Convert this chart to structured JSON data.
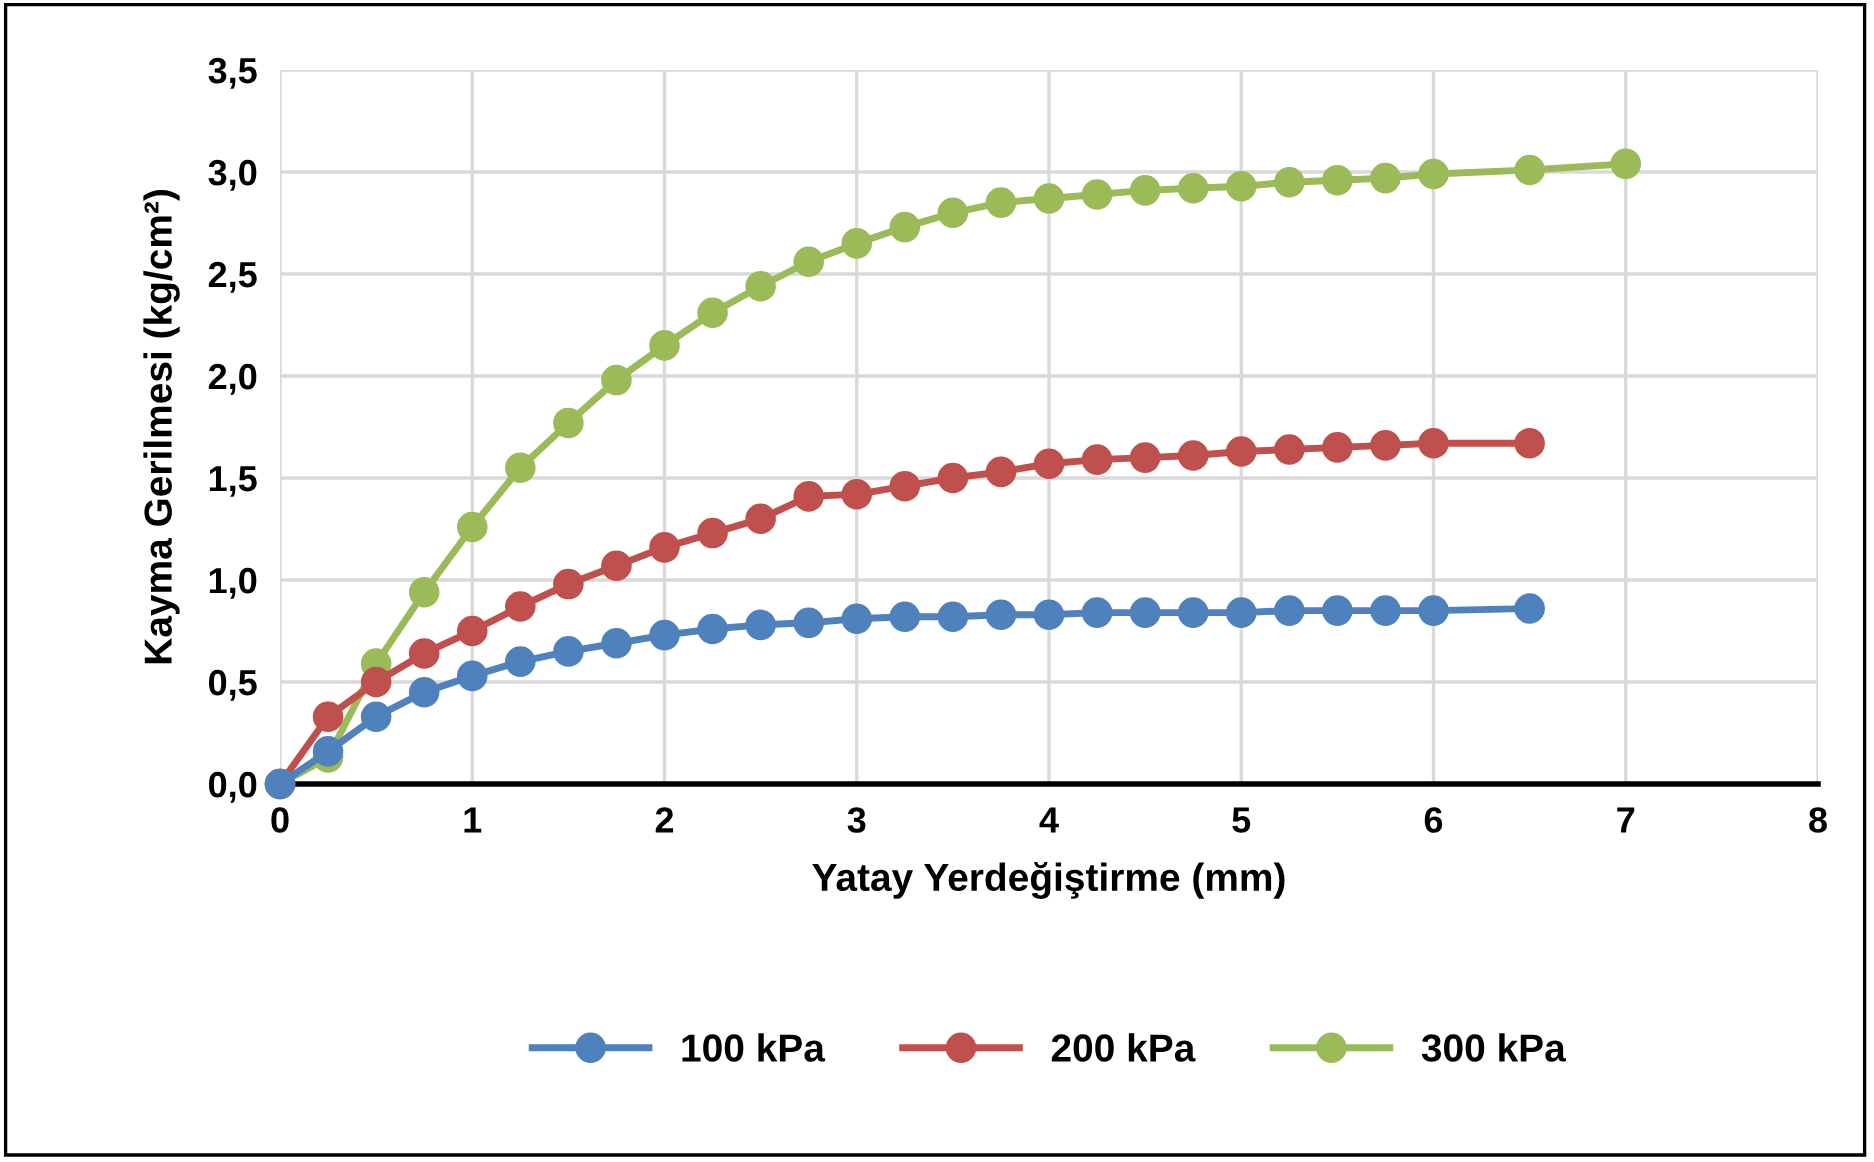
{
  "chart_data": {
    "type": "line",
    "xlabel": "Yatay Yerdeğiştirme (mm)",
    "ylabel": "Kayma Gerilmesi (kg/cm²)",
    "xlim": [
      0,
      8
    ],
    "xticks": [
      0,
      1,
      2,
      3,
      4,
      5,
      6,
      7,
      8
    ],
    "ylim": [
      0,
      3.5
    ],
    "yticks": [
      {
        "value": 0,
        "label": "0,0"
      },
      {
        "value": 0.5,
        "label": "0,5"
      },
      {
        "value": 1,
        "label": "1,0"
      },
      {
        "value": 1.5,
        "label": "1,5"
      },
      {
        "value": 2,
        "label": "2,0"
      },
      {
        "value": 2.5,
        "label": "2,5"
      },
      {
        "value": 3,
        "label": "3,0"
      },
      {
        "value": 3.5,
        "label": "3,5"
      }
    ],
    "grid": true,
    "legend": "bottom",
    "marker": "circle",
    "line_style": "solid",
    "series": [
      {
        "name": "100 kPa",
        "color": "#4f81bd",
        "x": [
          0,
          0.25,
          0.5,
          0.75,
          1,
          1.25,
          1.5,
          1.75,
          2,
          2.25,
          2.5,
          2.75,
          3,
          3.25,
          3.5,
          3.75,
          4,
          4.25,
          4.5,
          4.75,
          5,
          5.25,
          5.5,
          5.75,
          6,
          6.5
        ],
        "values": [
          0,
          0.16,
          0.33,
          0.45,
          0.53,
          0.6,
          0.65,
          0.69,
          0.73,
          0.76,
          0.78,
          0.79,
          0.81,
          0.82,
          0.82,
          0.83,
          0.83,
          0.84,
          0.84,
          0.84,
          0.84,
          0.85,
          0.85,
          0.85,
          0.85,
          0.86
        ]
      },
      {
        "name": "200 kPa",
        "color": "#c0504d",
        "x": [
          0,
          0.25,
          0.5,
          0.75,
          1,
          1.25,
          1.5,
          1.75,
          2,
          2.25,
          2.5,
          2.75,
          3,
          3.25,
          3.5,
          3.75,
          4,
          4.25,
          4.5,
          4.75,
          5,
          5.25,
          5.5,
          5.75,
          6,
          6.5
        ],
        "values": [
          0,
          0.33,
          0.5,
          0.64,
          0.75,
          0.87,
          0.98,
          1.07,
          1.16,
          1.23,
          1.3,
          1.41,
          1.42,
          1.46,
          1.5,
          1.53,
          1.57,
          1.59,
          1.6,
          1.61,
          1.63,
          1.64,
          1.65,
          1.66,
          1.67,
          1.67
        ]
      },
      {
        "name": "300 kPa",
        "color": "#9bbb59",
        "x": [
          0,
          0.25,
          0.5,
          0.75,
          1,
          1.25,
          1.5,
          1.75,
          2,
          2.25,
          2.5,
          2.75,
          3,
          3.25,
          3.5,
          3.75,
          4,
          4.25,
          4.5,
          4.75,
          5,
          5.25,
          5.5,
          5.75,
          6,
          6.5,
          7
        ],
        "values": [
          0,
          0.13,
          0.59,
          0.94,
          1.26,
          1.55,
          1.77,
          1.98,
          2.15,
          2.31,
          2.44,
          2.56,
          2.65,
          2.73,
          2.8,
          2.85,
          2.87,
          2.89,
          2.91,
          2.92,
          2.93,
          2.95,
          2.96,
          2.97,
          2.99,
          3.01,
          3.04
        ]
      }
    ]
  }
}
